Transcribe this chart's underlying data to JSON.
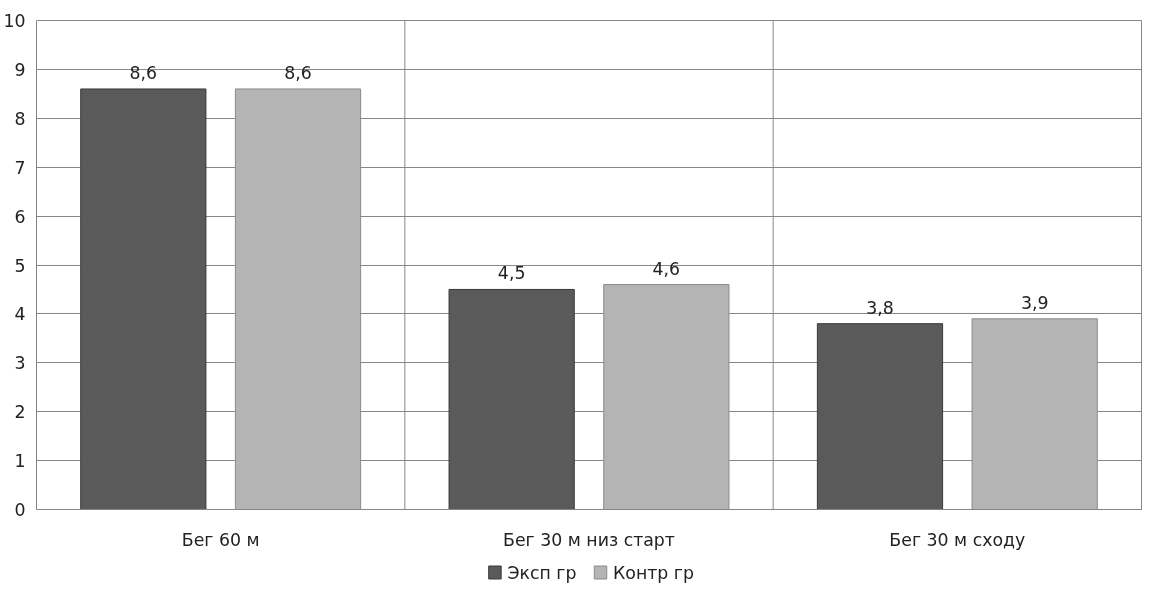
{
  "chart_data": {
    "type": "bar",
    "categories": [
      "Бег 60 м",
      "Бег 30 м низ старт",
      "Бег 30 м сходу"
    ],
    "series": [
      {
        "name": "Эксп гр",
        "color": "#5a5a5a",
        "values": [
          8.6,
          4.5,
          3.8
        ],
        "value_labels": [
          "8,6",
          "4,5",
          "3,8"
        ]
      },
      {
        "name": "Контр гр",
        "color": "#b4b4b4",
        "values": [
          8.6,
          4.6,
          3.9
        ],
        "value_labels": [
          "8,6",
          "4,6",
          "3,9"
        ]
      }
    ],
    "ylim": [
      0,
      10
    ],
    "yticks": [
      0,
      1,
      2,
      3,
      4,
      5,
      6,
      7,
      8,
      9,
      10
    ],
    "grid": true,
    "legend": "bottom"
  }
}
